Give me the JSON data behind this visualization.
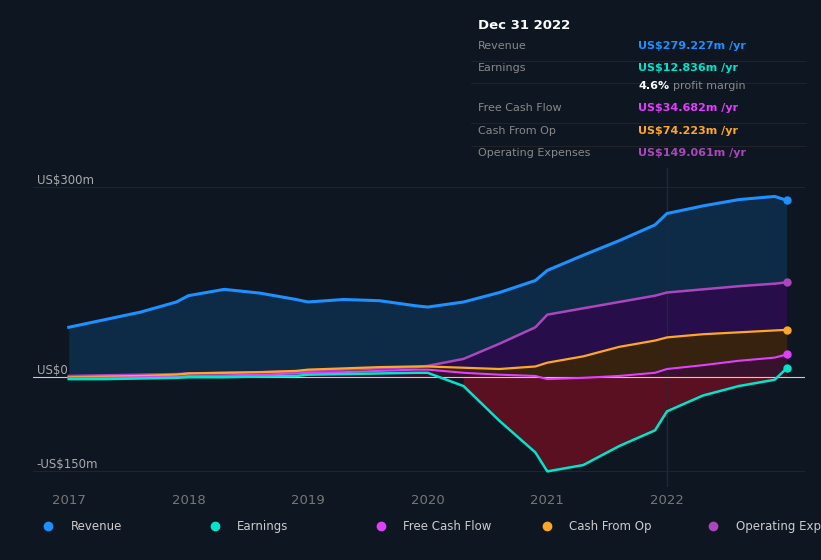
{
  "bg_color": "#0e1621",
  "plot_bg_color": "#0e1621",
  "grid_color": "#1a2a3a",
  "zero_line_color": "#cccccc",
  "years": [
    2017.0,
    2017.3,
    2017.6,
    2017.9,
    2018.0,
    2018.3,
    2018.6,
    2018.9,
    2019.0,
    2019.3,
    2019.6,
    2019.9,
    2020.0,
    2020.3,
    2020.6,
    2020.9,
    2021.0,
    2021.3,
    2021.6,
    2021.9,
    2022.0,
    2022.3,
    2022.6,
    2022.9,
    2023.0
  ],
  "revenue": [
    78,
    90,
    102,
    118,
    128,
    138,
    132,
    122,
    118,
    122,
    120,
    112,
    110,
    118,
    133,
    152,
    168,
    192,
    215,
    240,
    258,
    270,
    280,
    285,
    279
  ],
  "earnings": [
    -4,
    -4,
    -3,
    -2,
    -1,
    -1,
    0,
    1,
    3,
    4,
    5,
    6,
    6,
    -15,
    -70,
    -120,
    -150,
    -140,
    -110,
    -85,
    -55,
    -30,
    -15,
    -5,
    13
  ],
  "free_cash_flow": [
    -2,
    -2,
    -1,
    0,
    1,
    2,
    3,
    5,
    6,
    7,
    9,
    11,
    11,
    6,
    3,
    1,
    -4,
    -2,
    1,
    6,
    12,
    18,
    25,
    30,
    35
  ],
  "cash_from_op": [
    -1,
    0,
    1,
    3,
    5,
    6,
    7,
    9,
    11,
    13,
    15,
    16,
    16,
    14,
    12,
    16,
    22,
    32,
    47,
    57,
    62,
    67,
    70,
    73,
    74
  ],
  "operating_expenses": [
    1,
    2,
    3,
    4,
    5,
    6,
    7,
    8,
    9,
    11,
    13,
    15,
    17,
    28,
    52,
    78,
    98,
    108,
    118,
    128,
    133,
    138,
    143,
    147,
    149
  ],
  "revenue_color": "#1e90ff",
  "earnings_color": "#00e5cc",
  "free_cash_flow_color": "#e040fb",
  "cash_from_op_color": "#ffa726",
  "operating_expenses_color": "#ab47bc",
  "revenue_fill": "#0d2a47",
  "earnings_fill_neg": "#5a1020",
  "operating_expenses_fill": "#2a0a4a",
  "cash_from_op_fill": "#3a2800",
  "free_cash_flow_fill": "#3a0a3a",
  "ylim": [
    -175,
    330
  ],
  "xlim": [
    2016.7,
    2023.15
  ],
  "ytick_vals": [
    -150,
    0,
    300
  ],
  "ytick_labels": [
    "-US$150m",
    "US$0",
    "US$300m"
  ],
  "xtick_years": [
    2017,
    2018,
    2019,
    2020,
    2021,
    2022
  ],
  "info_box": {
    "title": "Dec 31 2022",
    "rows": [
      {
        "label": "Revenue",
        "value": "US$279.227m /yr",
        "value_color": "#1e90ff"
      },
      {
        "label": "Earnings",
        "value": "US$12.836m /yr",
        "value_color": "#00e5cc"
      },
      {
        "label": "",
        "value_left": "4.6%",
        "value_right": " profit margin",
        "special": true
      },
      {
        "label": "Free Cash Flow",
        "value": "US$34.682m /yr",
        "value_color": "#e040fb"
      },
      {
        "label": "Cash From Op",
        "value": "US$74.223m /yr",
        "value_color": "#ffa726"
      },
      {
        "label": "Operating Expenses",
        "value": "US$149.061m /yr",
        "value_color": "#ab47bc"
      }
    ]
  },
  "legend_items": [
    {
      "label": "Revenue",
      "color": "#1e90ff"
    },
    {
      "label": "Earnings",
      "color": "#00e5cc"
    },
    {
      "label": "Free Cash Flow",
      "color": "#e040fb"
    },
    {
      "label": "Cash From Op",
      "color": "#ffa726"
    },
    {
      "label": "Operating Expenses",
      "color": "#ab47bc"
    }
  ]
}
